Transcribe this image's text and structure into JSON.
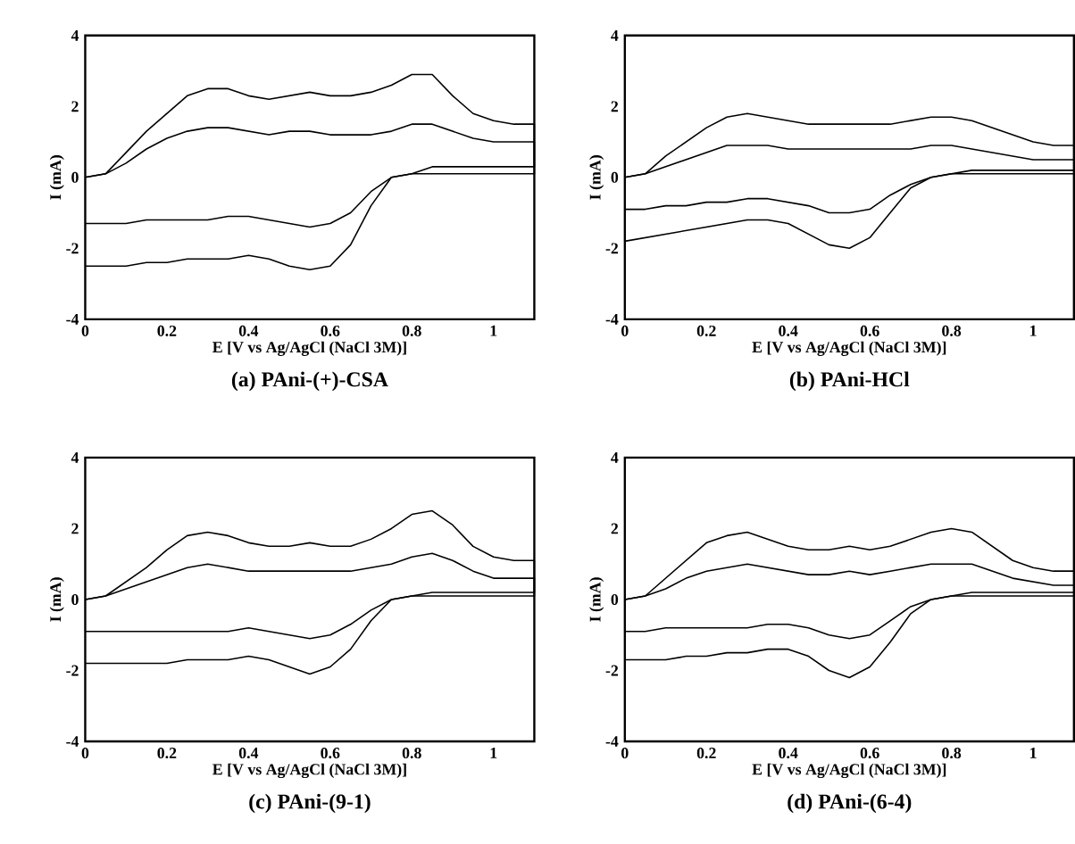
{
  "chart_data": [
    {
      "type": "line",
      "title": "(a) PAni-(+)-CSA",
      "xlabel": "E [V vs Ag/AgCl (NaCl 3M)]",
      "ylabel": "I (mA)",
      "xlim": [
        0,
        1.1
      ],
      "ylim": [
        -4,
        4
      ],
      "xticks": [
        0,
        0.2,
        0.4,
        0.6,
        0.8,
        1
      ],
      "yticks": [
        -4,
        -2,
        0,
        2,
        4
      ],
      "marker": "none",
      "line_style": "solid",
      "x": [
        0,
        0.05,
        0.1,
        0.15,
        0.2,
        0.25,
        0.3,
        0.35,
        0.4,
        0.45,
        0.5,
        0.55,
        0.6,
        0.65,
        0.7,
        0.75,
        0.8,
        0.85,
        0.9,
        0.95,
        1.0,
        1.05,
        1.1,
        1.1,
        1.05,
        1.0,
        0.95,
        0.9,
        0.85,
        0.8,
        0.75,
        0.7,
        0.65,
        0.6,
        0.55,
        0.5,
        0.45,
        0.4,
        0.35,
        0.3,
        0.25,
        0.2,
        0.15,
        0.1,
        0.05,
        0
      ],
      "series": [
        {
          "color": "#000000",
          "values": [
            0,
            0.1,
            0.7,
            1.3,
            1.8,
            2.3,
            2.5,
            2.5,
            2.3,
            2.2,
            2.3,
            2.4,
            2.3,
            2.3,
            2.4,
            2.6,
            2.9,
            2.9,
            2.3,
            1.8,
            1.6,
            1.5,
            1.5,
            0.3,
            0.3,
            0.3,
            0.3,
            0.3,
            0.3,
            0.1,
            0,
            -0.8,
            -1.9,
            -2.5,
            -2.6,
            -2.5,
            -2.3,
            -2.2,
            -2.3,
            -2.3,
            -2.3,
            -2.4,
            -2.4,
            -2.5,
            -2.5,
            -2.5
          ]
        },
        {
          "color": "#000000",
          "values": [
            0,
            0.1,
            0.4,
            0.8,
            1.1,
            1.3,
            1.4,
            1.4,
            1.3,
            1.2,
            1.3,
            1.3,
            1.2,
            1.2,
            1.2,
            1.3,
            1.5,
            1.5,
            1.3,
            1.1,
            1.0,
            1.0,
            1.0,
            0.1,
            0.1,
            0.1,
            0.1,
            0.1,
            0.1,
            0.1,
            0,
            -0.4,
            -1.0,
            -1.3,
            -1.4,
            -1.3,
            -1.2,
            -1.1,
            -1.1,
            -1.2,
            -1.2,
            -1.2,
            -1.2,
            -1.3,
            -1.3,
            -1.3
          ]
        }
      ]
    },
    {
      "type": "line",
      "title": "(b) PAni-HCl",
      "xlabel": "E [V vs Ag/AgCl (NaCl 3M)]",
      "ylabel": "I (mA)",
      "xlim": [
        0,
        1.1
      ],
      "ylim": [
        -4,
        4
      ],
      "xticks": [
        0,
        0.2,
        0.4,
        0.6,
        0.8,
        1
      ],
      "yticks": [
        -4,
        -2,
        0,
        2,
        4
      ],
      "marker": "none",
      "line_style": "solid",
      "x": [
        0,
        0.05,
        0.1,
        0.15,
        0.2,
        0.25,
        0.3,
        0.35,
        0.4,
        0.45,
        0.5,
        0.55,
        0.6,
        0.65,
        0.7,
        0.75,
        0.8,
        0.85,
        0.9,
        0.95,
        1.0,
        1.05,
        1.1,
        1.1,
        1.05,
        1.0,
        0.95,
        0.9,
        0.85,
        0.8,
        0.75,
        0.7,
        0.65,
        0.6,
        0.55,
        0.5,
        0.45,
        0.4,
        0.35,
        0.3,
        0.25,
        0.2,
        0.15,
        0.1,
        0.05,
        0
      ],
      "series": [
        {
          "color": "#000000",
          "values": [
            0,
            0.1,
            0.6,
            1.0,
            1.4,
            1.7,
            1.8,
            1.7,
            1.6,
            1.5,
            1.5,
            1.5,
            1.5,
            1.5,
            1.6,
            1.7,
            1.7,
            1.6,
            1.4,
            1.2,
            1.0,
            0.9,
            0.9,
            0.2,
            0.2,
            0.2,
            0.2,
            0.2,
            0.2,
            0.1,
            0,
            -0.3,
            -1.0,
            -1.7,
            -2.0,
            -1.9,
            -1.6,
            -1.3,
            -1.2,
            -1.2,
            -1.3,
            -1.4,
            -1.5,
            -1.6,
            -1.7,
            -1.8
          ]
        },
        {
          "color": "#000000",
          "values": [
            0,
            0.1,
            0.3,
            0.5,
            0.7,
            0.9,
            0.9,
            0.9,
            0.8,
            0.8,
            0.8,
            0.8,
            0.8,
            0.8,
            0.8,
            0.9,
            0.9,
            0.8,
            0.7,
            0.6,
            0.5,
            0.5,
            0.5,
            0.1,
            0.1,
            0.1,
            0.1,
            0.1,
            0.1,
            0.1,
            0,
            -0.2,
            -0.5,
            -0.9,
            -1.0,
            -1.0,
            -0.8,
            -0.7,
            -0.6,
            -0.6,
            -0.7,
            -0.7,
            -0.8,
            -0.8,
            -0.9,
            -0.9
          ]
        }
      ]
    },
    {
      "type": "line",
      "title": "(c) PAni-(9-1)",
      "xlabel": "E [V vs Ag/AgCl (NaCl 3M)]",
      "ylabel": "I (mA)",
      "xlim": [
        0,
        1.1
      ],
      "ylim": [
        -4,
        4
      ],
      "xticks": [
        0,
        0.2,
        0.4,
        0.6,
        0.8,
        1
      ],
      "yticks": [
        -4,
        -2,
        0,
        2,
        4
      ],
      "marker": "none",
      "line_style": "solid",
      "x": [
        0,
        0.05,
        0.1,
        0.15,
        0.2,
        0.25,
        0.3,
        0.35,
        0.4,
        0.45,
        0.5,
        0.55,
        0.6,
        0.65,
        0.7,
        0.75,
        0.8,
        0.85,
        0.9,
        0.95,
        1.0,
        1.05,
        1.1,
        1.1,
        1.05,
        1.0,
        0.95,
        0.9,
        0.85,
        0.8,
        0.75,
        0.7,
        0.65,
        0.6,
        0.55,
        0.5,
        0.45,
        0.4,
        0.35,
        0.3,
        0.25,
        0.2,
        0.15,
        0.1,
        0.05,
        0
      ],
      "series": [
        {
          "color": "#000000",
          "values": [
            0,
            0.1,
            0.5,
            0.9,
            1.4,
            1.8,
            1.9,
            1.8,
            1.6,
            1.5,
            1.5,
            1.6,
            1.5,
            1.5,
            1.7,
            2.0,
            2.4,
            2.5,
            2.1,
            1.5,
            1.2,
            1.1,
            1.1,
            0.2,
            0.2,
            0.2,
            0.2,
            0.2,
            0.2,
            0.1,
            0,
            -0.6,
            -1.4,
            -1.9,
            -2.1,
            -1.9,
            -1.7,
            -1.6,
            -1.7,
            -1.7,
            -1.7,
            -1.8,
            -1.8,
            -1.8,
            -1.8,
            -1.8
          ]
        },
        {
          "color": "#000000",
          "values": [
            0,
            0.1,
            0.3,
            0.5,
            0.7,
            0.9,
            1.0,
            0.9,
            0.8,
            0.8,
            0.8,
            0.8,
            0.8,
            0.8,
            0.9,
            1.0,
            1.2,
            1.3,
            1.1,
            0.8,
            0.6,
            0.6,
            0.6,
            0.1,
            0.1,
            0.1,
            0.1,
            0.1,
            0.1,
            0.1,
            0,
            -0.3,
            -0.7,
            -1.0,
            -1.1,
            -1.0,
            -0.9,
            -0.8,
            -0.9,
            -0.9,
            -0.9,
            -0.9,
            -0.9,
            -0.9,
            -0.9,
            -0.9
          ]
        }
      ]
    },
    {
      "type": "line",
      "title": "(d) PAni-(6-4)",
      "xlabel": "E [V vs Ag/AgCl (NaCl 3M)]",
      "ylabel": "I (mA)",
      "xlim": [
        0,
        1.1
      ],
      "ylim": [
        -4,
        4
      ],
      "xticks": [
        0,
        0.2,
        0.4,
        0.6,
        0.8,
        1
      ],
      "yticks": [
        -4,
        -2,
        0,
        2,
        4
      ],
      "marker": "none",
      "line_style": "solid",
      "x": [
        0,
        0.05,
        0.1,
        0.15,
        0.2,
        0.25,
        0.3,
        0.35,
        0.4,
        0.45,
        0.5,
        0.55,
        0.6,
        0.65,
        0.7,
        0.75,
        0.8,
        0.85,
        0.9,
        0.95,
        1.0,
        1.05,
        1.1,
        1.1,
        1.05,
        1.0,
        0.95,
        0.9,
        0.85,
        0.8,
        0.75,
        0.7,
        0.65,
        0.6,
        0.55,
        0.5,
        0.45,
        0.4,
        0.35,
        0.3,
        0.25,
        0.2,
        0.15,
        0.1,
        0.05,
        0
      ],
      "series": [
        {
          "color": "#000000",
          "values": [
            0,
            0.1,
            0.6,
            1.1,
            1.6,
            1.8,
            1.9,
            1.7,
            1.5,
            1.4,
            1.4,
            1.5,
            1.4,
            1.5,
            1.7,
            1.9,
            2.0,
            1.9,
            1.5,
            1.1,
            0.9,
            0.8,
            0.8,
            0.2,
            0.2,
            0.2,
            0.2,
            0.2,
            0.2,
            0.1,
            0,
            -0.4,
            -1.2,
            -1.9,
            -2.2,
            -2.0,
            -1.6,
            -1.4,
            -1.4,
            -1.5,
            -1.5,
            -1.6,
            -1.6,
            -1.7,
            -1.7,
            -1.7
          ]
        },
        {
          "color": "#000000",
          "values": [
            0,
            0.1,
            0.3,
            0.6,
            0.8,
            0.9,
            1.0,
            0.9,
            0.8,
            0.7,
            0.7,
            0.8,
            0.7,
            0.8,
            0.9,
            1.0,
            1.0,
            1.0,
            0.8,
            0.6,
            0.5,
            0.4,
            0.4,
            0.1,
            0.1,
            0.1,
            0.1,
            0.1,
            0.1,
            0.1,
            0,
            -0.2,
            -0.6,
            -1.0,
            -1.1,
            -1.0,
            -0.8,
            -0.7,
            -0.7,
            -0.8,
            -0.8,
            -0.8,
            -0.8,
            -0.8,
            -0.9,
            -0.9
          ]
        }
      ]
    }
  ]
}
